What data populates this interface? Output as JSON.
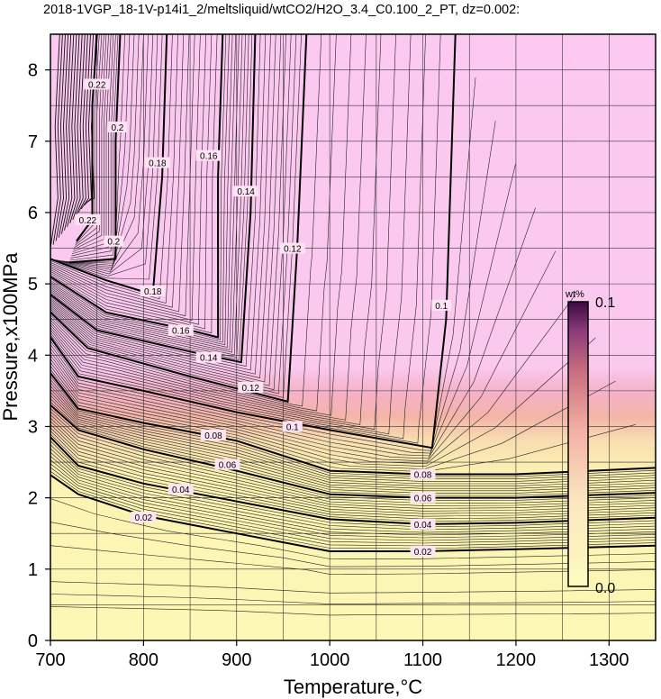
{
  "chart_data": {
    "type": "contour",
    "title": "2018-1VGP_18-1V-p14i1_2/meltsliquid/wtCO2/H2O_3.4_C0.100_2_PT, dz=0.002:",
    "xlabel": "Temperature,°C",
    "ylabel": "Pressure,x100MPa",
    "xlim": [
      700,
      1350
    ],
    "ylim": [
      0,
      8.5
    ],
    "x_ticks": [
      "700",
      "800",
      "900",
      "1000",
      "1100",
      "1200",
      "1300"
    ],
    "y_ticks": [
      "0",
      "1",
      "2",
      "3",
      "4",
      "5",
      "6",
      "7",
      "8"
    ],
    "grid": true,
    "contour_interval": 0.002,
    "major_contours": [
      {
        "level": 0.02,
        "label": "0.02",
        "points": [
          [
            700,
            2.32
          ],
          [
            730,
            2.05
          ],
          [
            800,
            1.75
          ],
          [
            900,
            1.5
          ],
          [
            1000,
            1.25
          ],
          [
            1100,
            1.25
          ],
          [
            1200,
            1.28
          ],
          [
            1350,
            1.33
          ]
        ],
        "label_at": [
          [
            800,
            1.73
          ],
          [
            1100,
            1.25
          ]
        ]
      },
      {
        "level": 0.04,
        "label": "0.04",
        "points": [
          [
            700,
            2.85
          ],
          [
            730,
            2.45
          ],
          [
            800,
            2.2
          ],
          [
            900,
            1.95
          ],
          [
            1000,
            1.7
          ],
          [
            1100,
            1.63
          ],
          [
            1200,
            1.65
          ],
          [
            1350,
            1.72
          ]
        ],
        "label_at": [
          [
            840,
            2.12
          ],
          [
            1100,
            1.63
          ]
        ]
      },
      {
        "level": 0.06,
        "label": "0.06",
        "points": [
          [
            700,
            3.3
          ],
          [
            730,
            2.95
          ],
          [
            800,
            2.68
          ],
          [
            900,
            2.38
          ],
          [
            1000,
            2.05
          ],
          [
            1100,
            2.0
          ],
          [
            1200,
            2.0
          ],
          [
            1350,
            2.07
          ]
        ],
        "label_at": [
          [
            890,
            2.47
          ],
          [
            1100,
            2.0
          ]
        ]
      },
      {
        "level": 0.08,
        "label": "0.08",
        "points": [
          [
            700,
            3.75
          ],
          [
            730,
            3.25
          ],
          [
            800,
            3.05
          ],
          [
            900,
            2.8
          ],
          [
            1000,
            2.38
          ],
          [
            1100,
            2.33
          ],
          [
            1200,
            2.33
          ],
          [
            1350,
            2.42
          ]
        ],
        "label_at": [
          [
            875,
            2.88
          ],
          [
            1100,
            2.33
          ]
        ]
      },
      {
        "level": 0.1,
        "label": "0.1",
        "points": [
          [
            700,
            4.25
          ],
          [
            730,
            3.7
          ],
          [
            800,
            3.5
          ],
          [
            900,
            3.2
          ],
          [
            1000,
            2.95
          ],
          [
            1110,
            2.7
          ],
          [
            1110,
            2.7
          ],
          [
            1125,
            4.5
          ],
          [
            1135,
            8.5
          ]
        ],
        "label_at": [
          [
            960,
            3.0
          ],
          [
            1120,
            4.7
          ]
        ]
      },
      {
        "level": 0.12,
        "label": "0.12",
        "points": [
          [
            700,
            4.6
          ],
          [
            740,
            4.1
          ],
          [
            850,
            3.7
          ],
          [
            955,
            3.35
          ],
          [
            965,
            5.5
          ],
          [
            975,
            8.5
          ]
        ],
        "label_at": [
          [
            915,
            3.55
          ],
          [
            960,
            5.5
          ]
        ]
      },
      {
        "level": 0.14,
        "label": "0.14",
        "points": [
          [
            700,
            4.85
          ],
          [
            750,
            4.35
          ],
          [
            850,
            4.05
          ],
          [
            905,
            3.9
          ],
          [
            915,
            6.0
          ],
          [
            920,
            8.5
          ]
        ],
        "label_at": [
          [
            870,
            3.97
          ],
          [
            910,
            6.3
          ]
        ]
      },
      {
        "level": 0.16,
        "label": "0.16",
        "points": [
          [
            700,
            5.1
          ],
          [
            760,
            4.6
          ],
          [
            850,
            4.35
          ],
          [
            880,
            4.25
          ],
          [
            880,
            6.5
          ],
          [
            885,
            8.5
          ]
        ],
        "label_at": [
          [
            840,
            4.35
          ],
          [
            870,
            6.8
          ]
        ]
      },
      {
        "level": 0.18,
        "label": "0.18",
        "points": [
          [
            700,
            5.35
          ],
          [
            760,
            5.05
          ],
          [
            810,
            4.85
          ],
          [
            820,
            6.5
          ],
          [
            825,
            8.5
          ]
        ],
        "label_at": [
          [
            810,
            4.9
          ],
          [
            815,
            6.7
          ]
        ]
      },
      {
        "level": 0.2,
        "label": "0.2",
        "points": [
          [
            720,
            5.3
          ],
          [
            770,
            5.35
          ],
          [
            770,
            7.0
          ],
          [
            775,
            8.5
          ]
        ],
        "label_at": [
          [
            768,
            5.6
          ],
          [
            772,
            7.2
          ]
        ]
      },
      {
        "level": 0.22,
        "label": "0.22",
        "points": [
          [
            728,
            5.6
          ],
          [
            745,
            5.9
          ],
          [
            745,
            7.5
          ],
          [
            750,
            8.5
          ]
        ],
        "label_at": [
          [
            740,
            5.9
          ],
          [
            750,
            7.8
          ]
        ]
      }
    ],
    "colorbar": {
      "unit": "wt%",
      "min_label": "0.0",
      "max_label": "0.1",
      "colors": [
        "#fdfcc0",
        "#fbe8b8",
        "#f5b7a4",
        "#d8848c",
        "#fbc7ee"
      ]
    },
    "fill_colors": {
      "low": "#fcf8b5",
      "mid": "#f1a4a6",
      "high": "#fbc9f0"
    }
  }
}
